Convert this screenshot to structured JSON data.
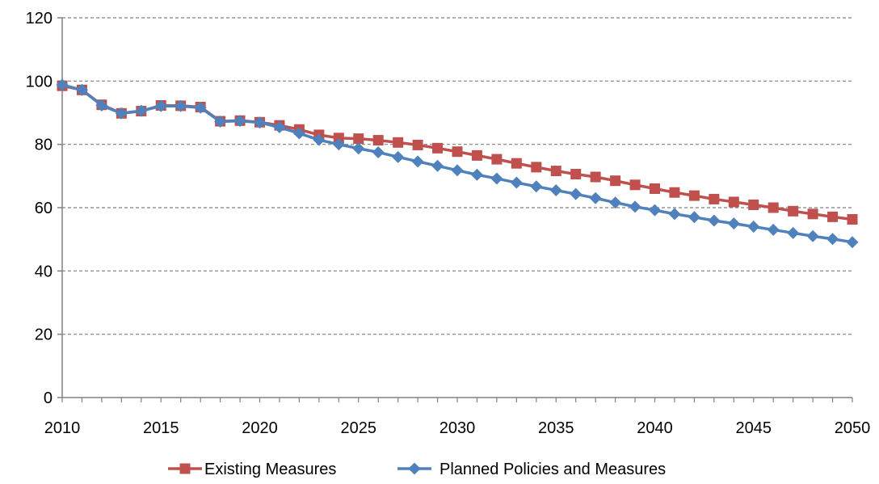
{
  "chart_data": {
    "type": "line",
    "title": "",
    "xlabel": "",
    "ylabel": "",
    "x": [
      2010,
      2011,
      2012,
      2013,
      2014,
      2015,
      2016,
      2017,
      2018,
      2019,
      2020,
      2021,
      2022,
      2023,
      2024,
      2025,
      2026,
      2027,
      2028,
      2029,
      2030,
      2031,
      2032,
      2033,
      2034,
      2035,
      2036,
      2037,
      2038,
      2039,
      2040,
      2041,
      2042,
      2043,
      2044,
      2045,
      2046,
      2047,
      2048,
      2049,
      2050
    ],
    "xlim": [
      2010,
      2050
    ],
    "ylim": [
      0,
      120
    ],
    "x_ticks": [
      "2010",
      "2015",
      "2020",
      "2025",
      "2030",
      "2035",
      "2040",
      "2045",
      "2050"
    ],
    "y_ticks": [
      "0",
      "20",
      "40",
      "60",
      "80",
      "100",
      "120"
    ],
    "grid": "horizontal dashed",
    "legend_position": "bottom",
    "series": [
      {
        "name": "Existing Measures",
        "color": "#C0504D",
        "marker": "square",
        "values": [
          98.5,
          97.2,
          92.5,
          89.8,
          90.5,
          92.3,
          92.2,
          91.8,
          87.3,
          87.5,
          87.0,
          86.0,
          84.7,
          83.0,
          82.0,
          81.8,
          81.3,
          80.6,
          79.8,
          78.8,
          77.7,
          76.5,
          75.3,
          74.0,
          72.8,
          71.6,
          70.6,
          69.7,
          68.5,
          67.2,
          66.0,
          64.8,
          63.8,
          62.7,
          61.8,
          60.9,
          60.0,
          58.9,
          58.0,
          57.1,
          56.3
        ]
      },
      {
        "name": "Planned Policies and Measures",
        "color": "#4F81BD",
        "marker": "diamond",
        "values": [
          98.8,
          97.2,
          92.3,
          89.8,
          90.6,
          92.1,
          92.1,
          91.6,
          87.2,
          87.4,
          86.9,
          85.4,
          83.5,
          81.4,
          80.0,
          78.7,
          77.5,
          76.0,
          74.6,
          73.2,
          71.8,
          70.4,
          69.2,
          67.9,
          66.7,
          65.5,
          64.3,
          63.0,
          61.6,
          60.3,
          59.2,
          58.0,
          57.0,
          55.9,
          55.0,
          54.0,
          53.0,
          52.0,
          51.0,
          50.1,
          49.1
        ]
      }
    ]
  }
}
